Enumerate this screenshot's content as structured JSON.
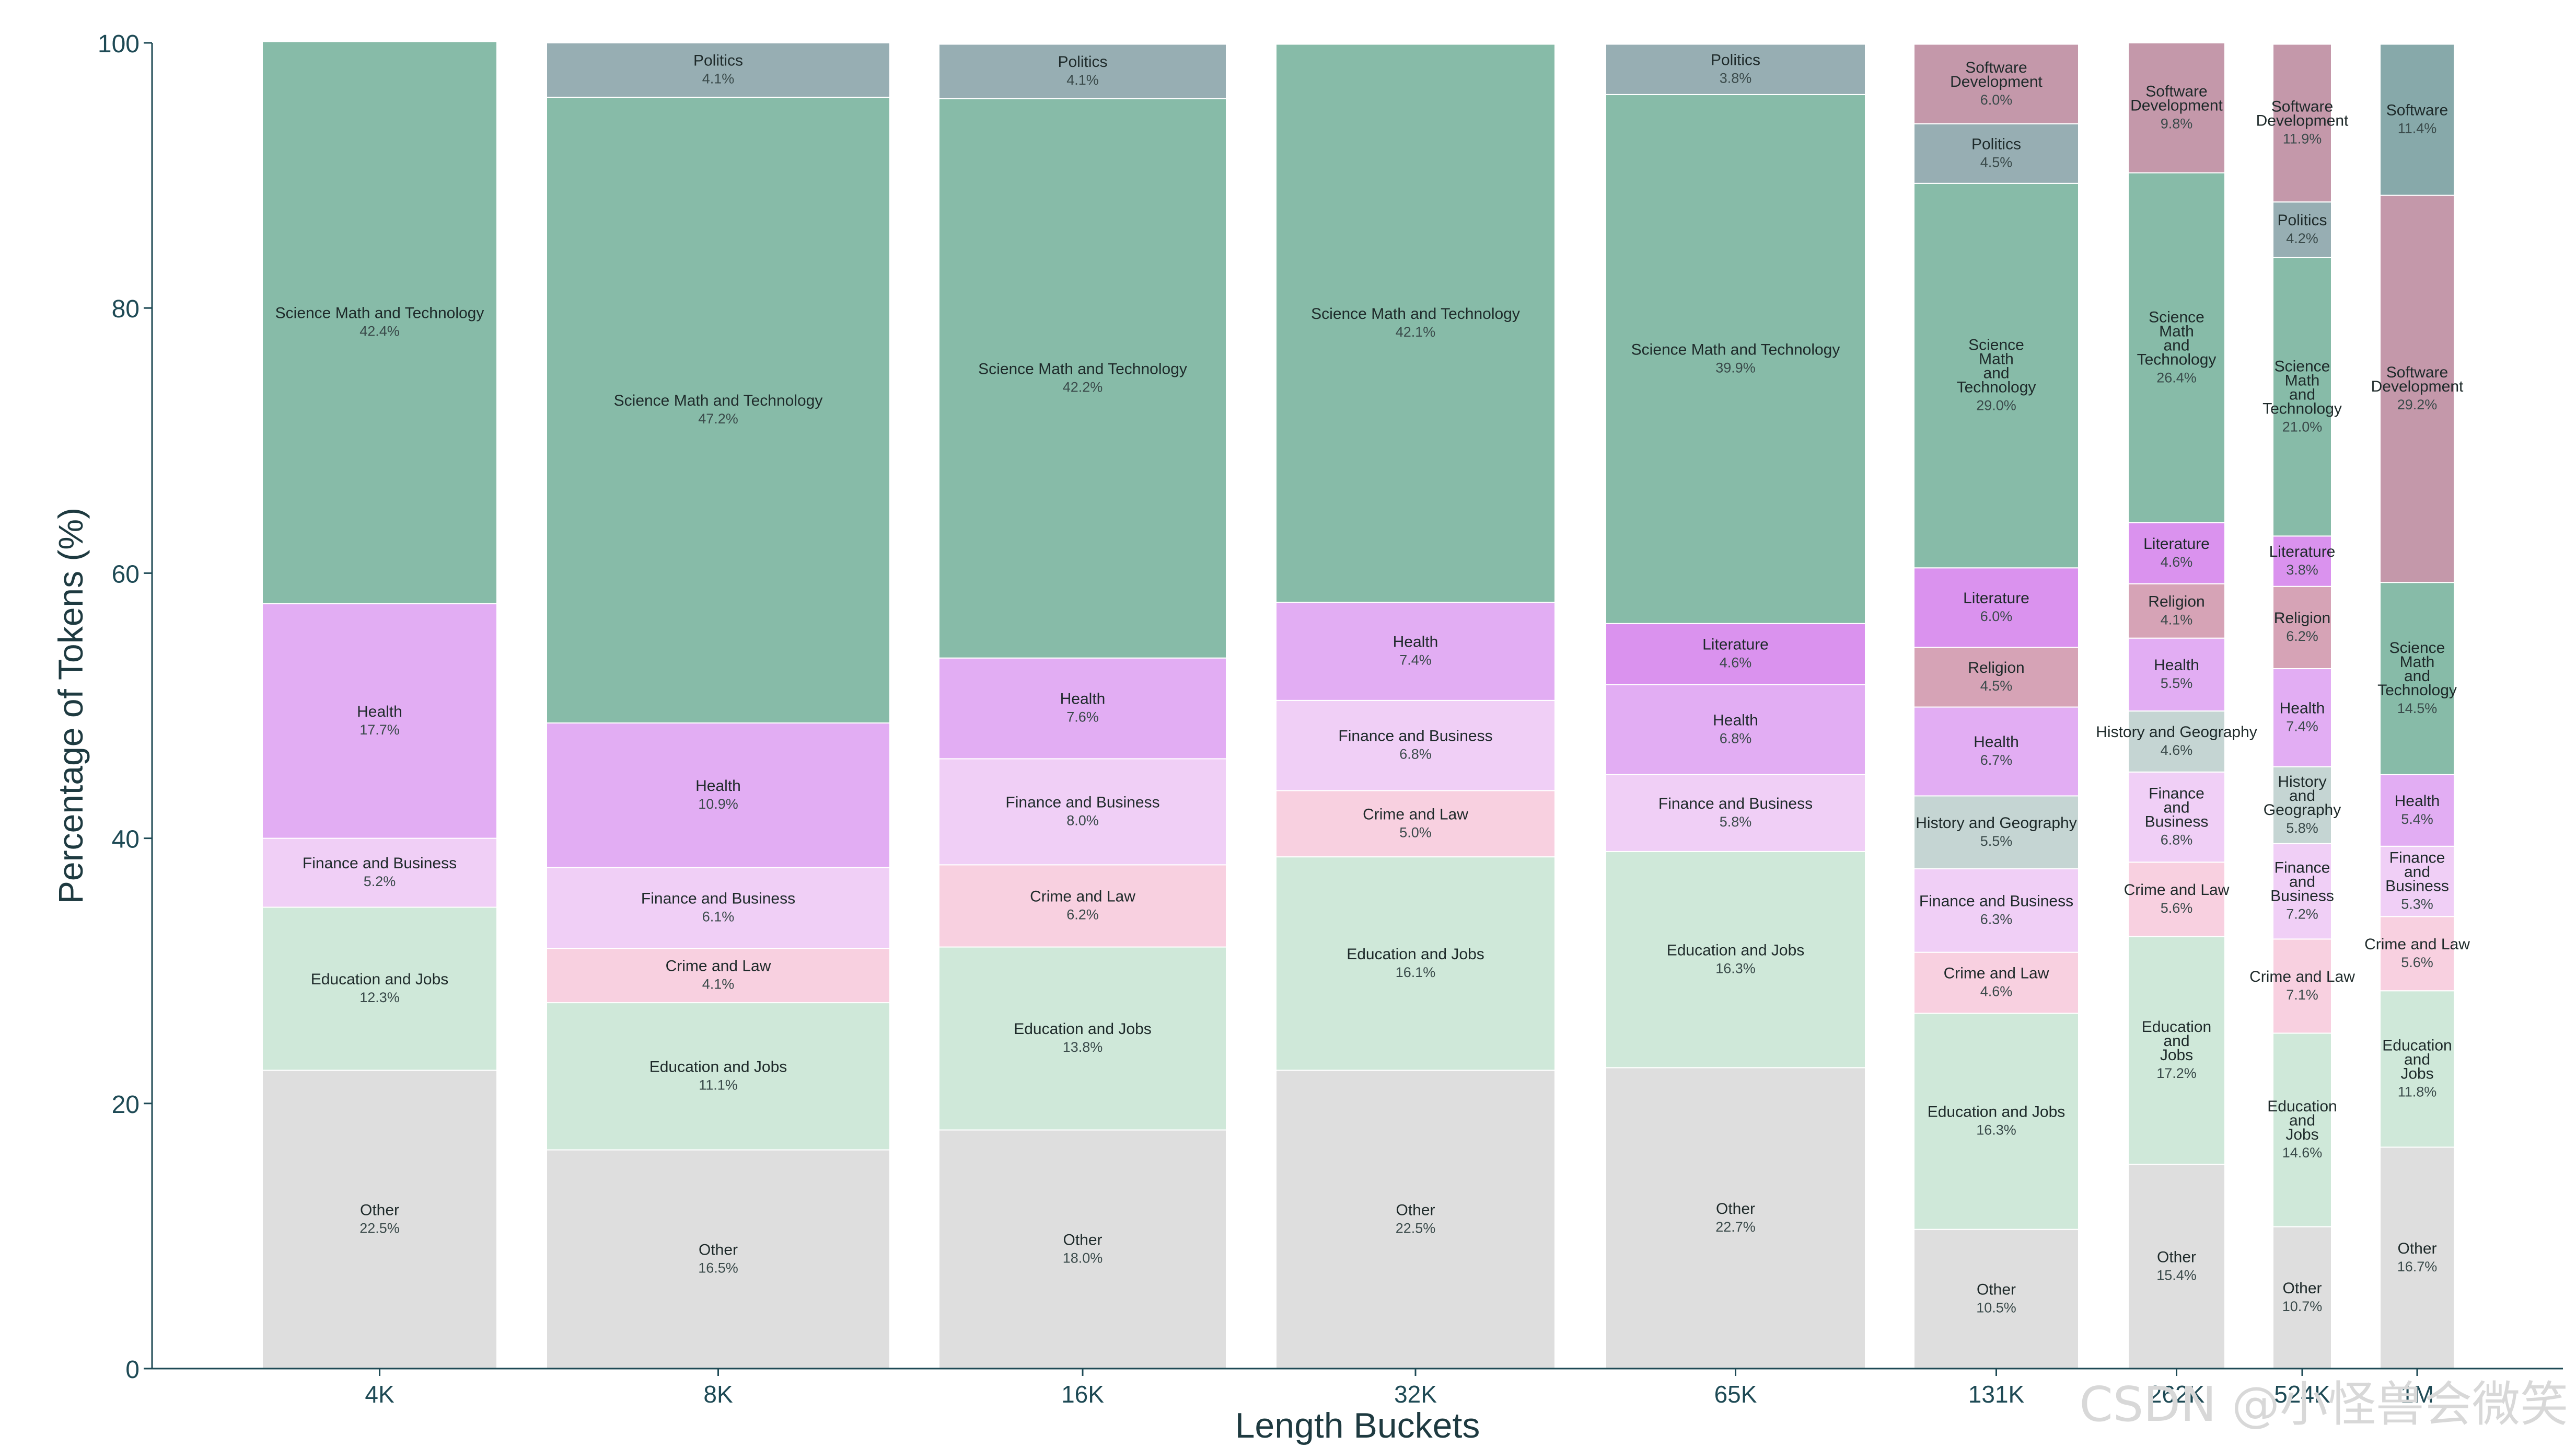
{
  "chart_data": {
    "type": "bar",
    "stacked": true,
    "xlabel": "Length Buckets",
    "ylabel": "Percentage of Tokens (%)",
    "ylim": [
      0,
      100
    ],
    "yticks": [
      0,
      20,
      40,
      60,
      80,
      100
    ],
    "categories": [
      "4K",
      "8K",
      "16K",
      "32K",
      "65K",
      "131K",
      "262K",
      "524K",
      "1M"
    ],
    "category_colors": {
      "Other": "#dedede",
      "Education and Jobs": "#cfe8d9",
      "Crime and Law": "#f8d0e0",
      "Finance and Business": "#f0cff6",
      "Health": "#e2adf3",
      "Science Math and Technology": "#87bba8",
      "Politics": "#97aeb3",
      "Literature": "#da92ee",
      "Religion": "#d6a3b6",
      "History and Geography": "#c5d5d3",
      "Software Development": "#c498aa",
      "Software": "#87a9aa"
    },
    "stacks": [
      {
        "bucket": "4K",
        "segments": [
          {
            "name": "Other",
            "label": "Other",
            "value": 22.5,
            "pct": "22.5%"
          },
          {
            "name": "Education and Jobs",
            "label": "Education and Jobs",
            "value": 12.3,
            "pct": "12.3%"
          },
          {
            "name": "Finance and Business",
            "label": "Finance and Business",
            "value": 5.2,
            "pct": "5.2%"
          },
          {
            "name": "Health",
            "label": "Health",
            "value": 17.7,
            "pct": "17.7%"
          },
          {
            "name": "Science Math and Technology",
            "label": "Science Math and Technology",
            "value": 42.4,
            "pct": "42.4%"
          }
        ]
      },
      {
        "bucket": "8K",
        "segments": [
          {
            "name": "Other",
            "label": "Other",
            "value": 16.5,
            "pct": "16.5%"
          },
          {
            "name": "Education and Jobs",
            "label": "Education and Jobs",
            "value": 11.1,
            "pct": "11.1%"
          },
          {
            "name": "Crime and Law",
            "label": "Crime and Law",
            "value": 4.1,
            "pct": "4.1%"
          },
          {
            "name": "Finance and Business",
            "label": "Finance and Business",
            "value": 6.1,
            "pct": "6.1%"
          },
          {
            "name": "Health",
            "label": "Health",
            "value": 10.9,
            "pct": "10.9%"
          },
          {
            "name": "Science Math and Technology",
            "label": "Science Math and Technology",
            "value": 47.2,
            "pct": "47.2%"
          },
          {
            "name": "Politics",
            "label": "Politics",
            "value": 4.1,
            "pct": "4.1%"
          }
        ]
      },
      {
        "bucket": "16K",
        "segments": [
          {
            "name": "Other",
            "label": "Other",
            "value": 18.0,
            "pct": "18.0%"
          },
          {
            "name": "Education and Jobs",
            "label": "Education and Jobs",
            "value": 13.8,
            "pct": "13.8%"
          },
          {
            "name": "Crime and Law",
            "label": "Crime and Law",
            "value": 6.2,
            "pct": "6.2%"
          },
          {
            "name": "Finance and Business",
            "label": "Finance and Business",
            "value": 8.0,
            "pct": "8.0%"
          },
          {
            "name": "Health",
            "label": "Health",
            "value": 7.6,
            "pct": "7.6%"
          },
          {
            "name": "Science Math and Technology",
            "label": "Science Math and Technology",
            "value": 42.2,
            "pct": "42.2%"
          },
          {
            "name": "Politics",
            "label": "Politics",
            "value": 4.1,
            "pct": "4.1%"
          }
        ]
      },
      {
        "bucket": "32K",
        "segments": [
          {
            "name": "Other",
            "label": "Other",
            "value": 22.5,
            "pct": "22.5%"
          },
          {
            "name": "Education and Jobs",
            "label": "Education and Jobs",
            "value": 16.1,
            "pct": "16.1%"
          },
          {
            "name": "Crime and Law",
            "label": "Crime and Law",
            "value": 5.0,
            "pct": "5.0%"
          },
          {
            "name": "Finance and Business",
            "label": "Finance and Business",
            "value": 6.8,
            "pct": "6.8%"
          },
          {
            "name": "Health",
            "label": "Health",
            "value": 7.4,
            "pct": "7.4%"
          },
          {
            "name": "Science Math and Technology",
            "label": "Science Math and Technology",
            "value": 42.1,
            "pct": "42.1%"
          }
        ]
      },
      {
        "bucket": "65K",
        "segments": [
          {
            "name": "Other",
            "label": "Other",
            "value": 22.7,
            "pct": "22.7%"
          },
          {
            "name": "Education and Jobs",
            "label": "Education and Jobs",
            "value": 16.3,
            "pct": "16.3%"
          },
          {
            "name": "Finance and Business",
            "label": "Finance and Business",
            "value": 5.8,
            "pct": "5.8%"
          },
          {
            "name": "Health",
            "label": "Health",
            "value": 6.8,
            "pct": "6.8%"
          },
          {
            "name": "Literature",
            "label": "Literature",
            "value": 4.6,
            "pct": "4.6%"
          },
          {
            "name": "Science Math and Technology",
            "label": "Science Math and Technology",
            "value": 39.9,
            "pct": "39.9%"
          },
          {
            "name": "Politics",
            "label": "Politics",
            "value": 3.8,
            "pct": "3.8%"
          }
        ]
      },
      {
        "bucket": "131K",
        "segments": [
          {
            "name": "Other",
            "label": "Other",
            "value": 10.5,
            "pct": "10.5%"
          },
          {
            "name": "Education and Jobs",
            "label": "Education and Jobs",
            "value": 16.3,
            "pct": "16.3%"
          },
          {
            "name": "Crime and Law",
            "label": "Crime and Law",
            "value": 4.6,
            "pct": "4.6%"
          },
          {
            "name": "Finance and Business",
            "label": "Finance and Business",
            "value": 6.3,
            "pct": "6.3%"
          },
          {
            "name": "History and Geography",
            "label": "History and Geography",
            "value": 5.5,
            "pct": "5.5%"
          },
          {
            "name": "Health",
            "label": "Health",
            "value": 6.7,
            "pct": "6.7%"
          },
          {
            "name": "Religion",
            "label": "Religion",
            "value": 4.5,
            "pct": "4.5%"
          },
          {
            "name": "Literature",
            "label": "Literature",
            "value": 6.0,
            "pct": "6.0%"
          },
          {
            "name": "Science Math and Technology",
            "label": "Science\nMath\nand\nTechnology",
            "value": 29.0,
            "pct": "29.0%"
          },
          {
            "name": "Politics",
            "label": "Politics",
            "value": 4.5,
            "pct": "4.5%"
          },
          {
            "name": "Software Development",
            "label": "Software\nDevelopment",
            "value": 6.0,
            "pct": "6.0%"
          }
        ]
      },
      {
        "bucket": "262K",
        "segments": [
          {
            "name": "Other",
            "label": "Other",
            "value": 15.4,
            "pct": "15.4%"
          },
          {
            "name": "Education and Jobs",
            "label": "Education\nand\nJobs",
            "value": 17.2,
            "pct": "17.2%"
          },
          {
            "name": "Crime and Law",
            "label": "Crime and Law",
            "value": 5.6,
            "pct": "5.6%"
          },
          {
            "name": "Finance and Business",
            "label": "Finance\nand\nBusiness",
            "value": 6.8,
            "pct": "6.8%"
          },
          {
            "name": "History and Geography",
            "label": "History and Geography",
            "value": 4.6,
            "pct": "4.6%"
          },
          {
            "name": "Health",
            "label": "Health",
            "value": 5.5,
            "pct": "5.5%"
          },
          {
            "name": "Religion",
            "label": "Religion",
            "value": 4.1,
            "pct": "4.1%"
          },
          {
            "name": "Literature",
            "label": "Literature",
            "value": 4.6,
            "pct": "4.6%"
          },
          {
            "name": "Science Math and Technology",
            "label": "Science\nMath\nand\nTechnology",
            "value": 26.4,
            "pct": "26.4%"
          },
          {
            "name": "Software Development",
            "label": "Software\nDevelopment",
            "value": 9.8,
            "pct": "9.8%"
          }
        ]
      },
      {
        "bucket": "524K",
        "segments": [
          {
            "name": "Other",
            "label": "Other",
            "value": 10.7,
            "pct": "10.7%"
          },
          {
            "name": "Education and Jobs",
            "label": "Education\nand\nJobs",
            "value": 14.6,
            "pct": "14.6%"
          },
          {
            "name": "Crime and Law",
            "label": "Crime and Law",
            "value": 7.1,
            "pct": "7.1%"
          },
          {
            "name": "Finance and Business",
            "label": "Finance\nand\nBusiness",
            "value": 7.2,
            "pct": "7.2%"
          },
          {
            "name": "History and Geography",
            "label": "History\nand\nGeography",
            "value": 5.8,
            "pct": "5.8%"
          },
          {
            "name": "Health",
            "label": "Health",
            "value": 7.4,
            "pct": "7.4%"
          },
          {
            "name": "Religion",
            "label": "Religion",
            "value": 6.2,
            "pct": "6.2%"
          },
          {
            "name": "Literature",
            "label": "Literature",
            "value": 3.8,
            "pct": "3.8%"
          },
          {
            "name": "Science Math and Technology",
            "label": "Science\nMath\nand\nTechnology",
            "value": 21.0,
            "pct": "21.0%"
          },
          {
            "name": "Politics",
            "label": "Politics",
            "value": 4.2,
            "pct": "4.2%"
          },
          {
            "name": "Software Development",
            "label": "Software\nDevelopment",
            "value": 11.9,
            "pct": "11.9%"
          }
        ]
      },
      {
        "bucket": "1M",
        "segments": [
          {
            "name": "Other",
            "label": "Other",
            "value": 16.7,
            "pct": "16.7%"
          },
          {
            "name": "Education and Jobs",
            "label": "Education\nand\nJobs",
            "value": 11.8,
            "pct": "11.8%"
          },
          {
            "name": "Crime and Law",
            "label": "Crime and Law",
            "value": 5.6,
            "pct": "5.6%"
          },
          {
            "name": "Finance and Business",
            "label": "Finance\nand\nBusiness",
            "value": 5.3,
            "pct": "5.3%"
          },
          {
            "name": "Health",
            "label": "Health",
            "value": 5.4,
            "pct": "5.4%"
          },
          {
            "name": "Science Math and Technology",
            "label": "Science\nMath\nand\nTechnology",
            "value": 14.5,
            "pct": "14.5%"
          },
          {
            "name": "Software Development",
            "label": "Software\nDevelopment",
            "value": 29.2,
            "pct": "29.2%"
          },
          {
            "name": "Software",
            "label": "Software",
            "value": 11.4,
            "pct": "11.4%"
          }
        ]
      }
    ]
  },
  "watermark": "CSDN @小怪兽会微笑",
  "colors": {
    "axis": "#1e4a55",
    "segment_border": "#ffffff"
  }
}
